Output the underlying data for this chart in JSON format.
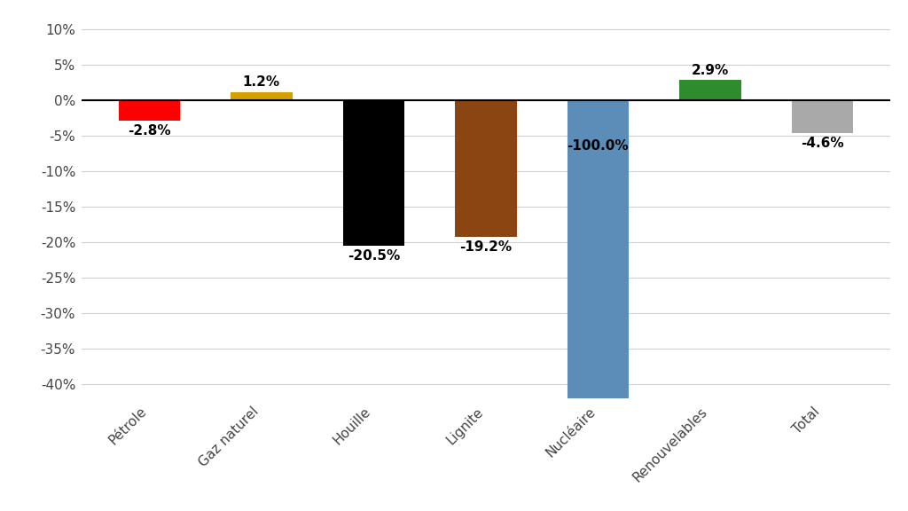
{
  "categories": [
    "Pétrole",
    "Gaz naturel",
    "Houille",
    "Lignite",
    "Nucléaire",
    "Renouvelables",
    "Total"
  ],
  "values": [
    -2.8,
    1.2,
    -20.5,
    -19.2,
    -100.0,
    2.9,
    -4.6
  ],
  "bar_colors": [
    "#ff0000",
    "#d4a000",
    "#000000",
    "#8b4513",
    "#5b8db8",
    "#2e8b2e",
    "#a9a9a9"
  ],
  "labels": [
    "-2.8%",
    "1.2%",
    "-20.5%",
    "-19.2%",
    "-100.0%",
    "2.9%",
    "-4.6%"
  ],
  "ylim": [
    -42,
    12
  ],
  "yticks": [
    -40,
    -35,
    -30,
    -25,
    -20,
    -15,
    -10,
    -5,
    0,
    5,
    10
  ],
  "ytick_labels": [
    "-40%",
    "-35%",
    "-30%",
    "-25%",
    "-20%",
    "-15%",
    "-10%",
    "-5%",
    "0%",
    "5%",
    "10%"
  ],
  "background_color": "#ffffff",
  "grid_color": "#d0d0d0",
  "label_fontsize": 11,
  "tick_fontsize": 11
}
